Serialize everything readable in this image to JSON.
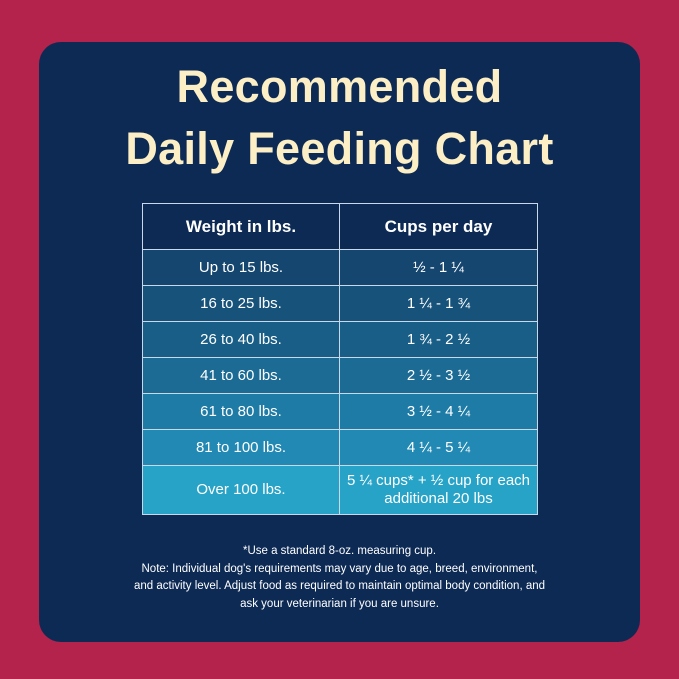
{
  "title": [
    "Recommended",
    "Daily Feeding Chart"
  ],
  "table": {
    "headers": [
      "Weight in lbs.",
      "Cups per day"
    ],
    "rows": [
      {
        "weight": "Up to 15 lbs.",
        "cups": "½ - 1 ¼"
      },
      {
        "weight": "16 to 25 lbs.",
        "cups": "1 ¼ - 1 ¾"
      },
      {
        "weight": "26 to 40 lbs.",
        "cups": "1 ¾ - 2 ½"
      },
      {
        "weight": "41 to 60 lbs.",
        "cups": "2 ½ - 3 ½"
      },
      {
        "weight": "61 to 80 lbs.",
        "cups": "3 ½ - 4 ¼"
      },
      {
        "weight": "81 to 100 lbs.",
        "cups": "4 ¼ - 5 ¼"
      },
      {
        "weight": "Over 100 lbs.",
        "cups": "5 ¼ cups* + ½ cup for each additional 20 lbs"
      }
    ],
    "row_colors": [
      "#15466f",
      "#17527b",
      "#195e87",
      "#1b6b95",
      "#1e7ba6",
      "#2189b4",
      "#27a3c7"
    ]
  },
  "notes": [
    "*Use a standard 8-oz. measuring cup.",
    "Note: Individual dog's requirements may vary due to age, breed, environment,",
    "and activity level. Adjust food as required to maintain optimal body condition, and",
    "ask your veterinarian if you are unsure."
  ],
  "colors": {
    "background": "#b3234b",
    "card": "#0d2a55",
    "title": "#fcefc6"
  }
}
